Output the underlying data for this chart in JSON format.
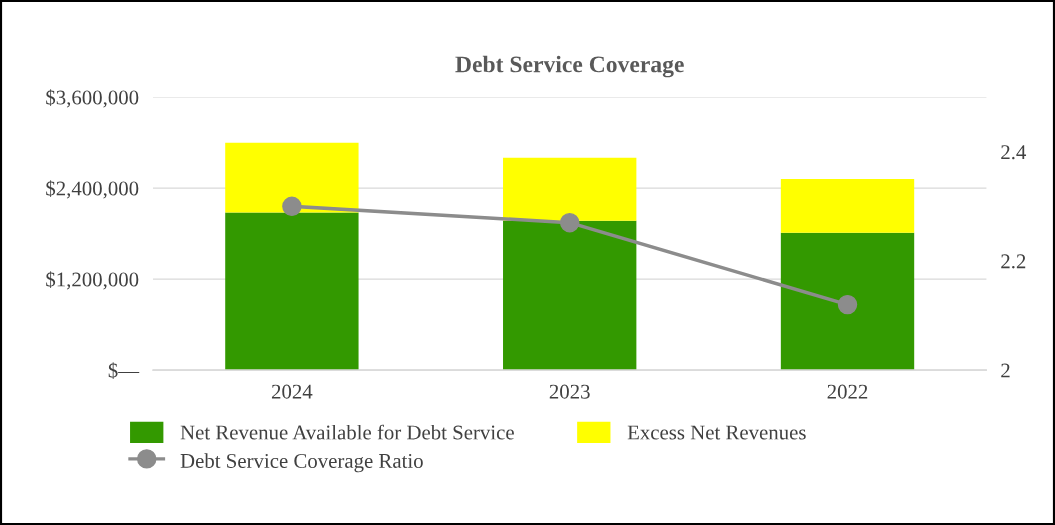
{
  "chart_data": {
    "type": "bar",
    "title": "Debt Service Coverage",
    "categories": [
      "2024",
      "2023",
      "2022"
    ],
    "stacked": true,
    "series": [
      {
        "name": "Net Revenue Available for Debt Service",
        "color": "#339900",
        "values": [
          2080000,
          1970000,
          1810000
        ]
      },
      {
        "name": "Excess Net Revenues",
        "color": "#ffff00",
        "values": [
          920000,
          830000,
          710000
        ]
      },
      {
        "name": "Debt Service Coverage Ratio",
        "type": "line",
        "axis": "y2",
        "color": "#8c8c8c",
        "values": [
          2.3,
          2.27,
          2.12
        ]
      }
    ],
    "ylim": [
      0,
      3600000
    ],
    "yticks": [
      {
        "value": 0,
        "label": "$—"
      },
      {
        "value": 1200000,
        "label": "$1,200,000"
      },
      {
        "value": 2400000,
        "label": "$2,400,000"
      },
      {
        "value": 3600000,
        "label": "$3,600,000"
      }
    ],
    "y2lim": [
      2,
      2.5
    ],
    "y2ticks": [
      2,
      2.2,
      2.4
    ],
    "grid": "y",
    "legend": "bottom",
    "marker": "circle",
    "line_style": "solid"
  }
}
